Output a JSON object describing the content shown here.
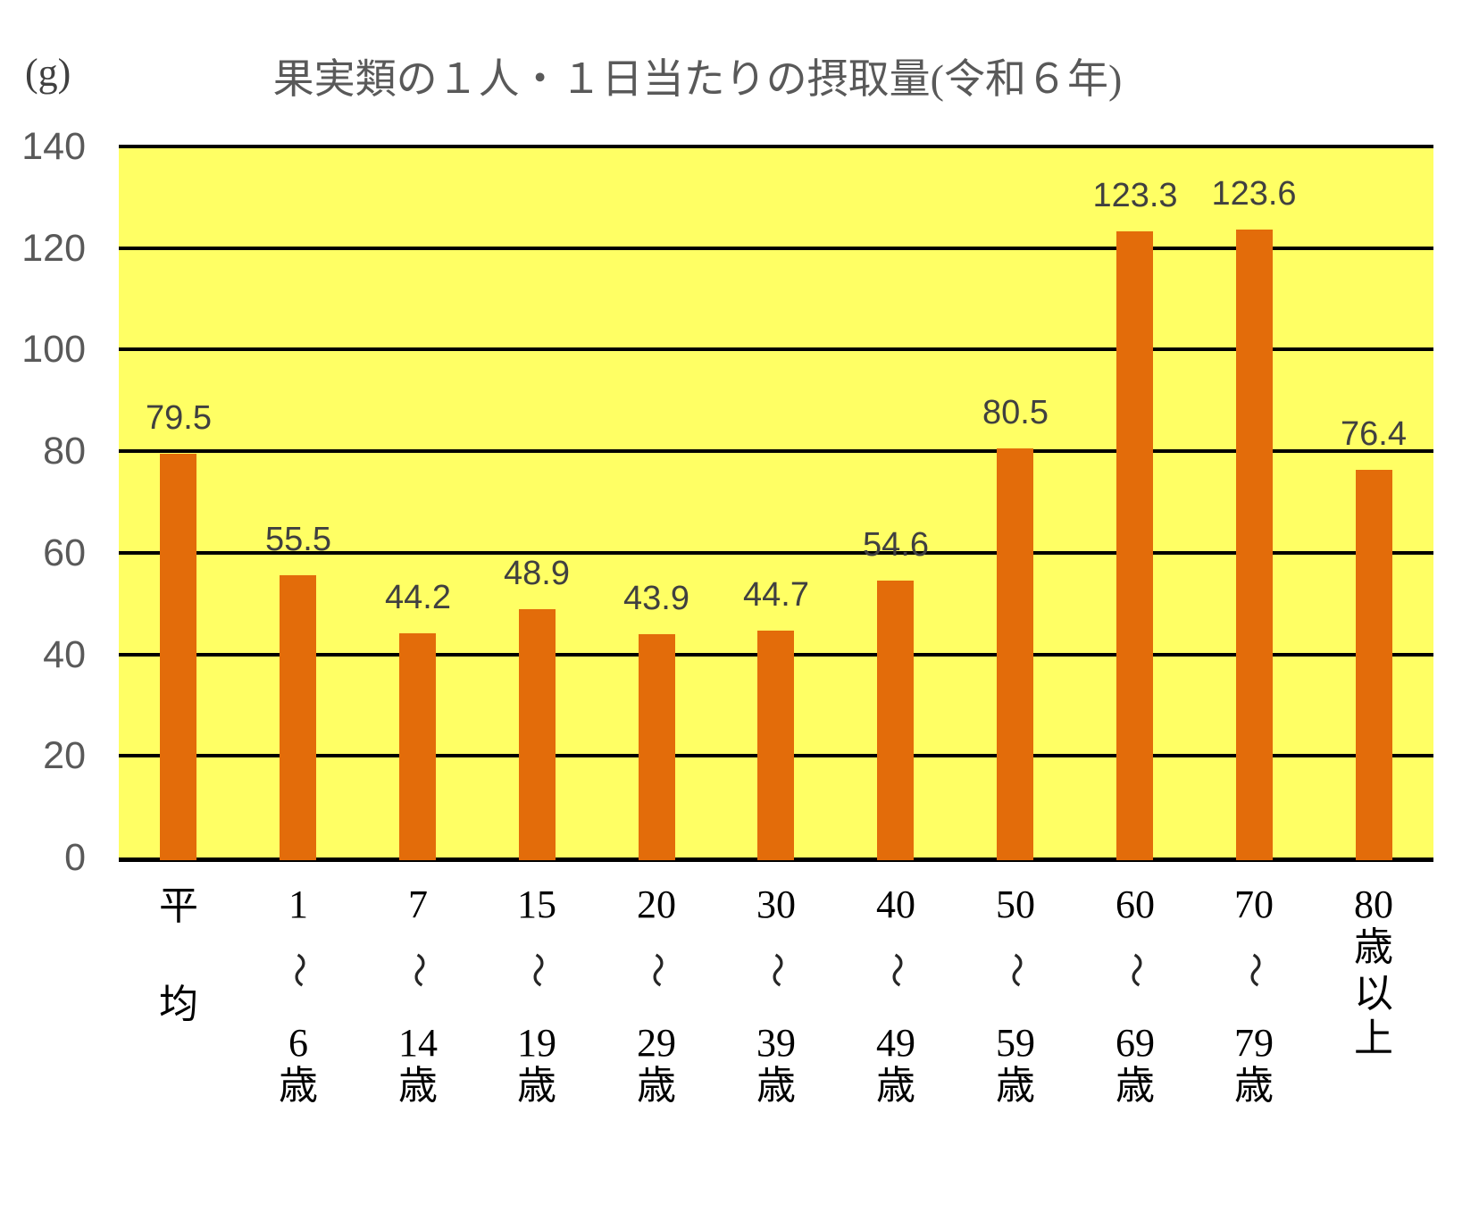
{
  "page": {
    "unit_label": "(g)",
    "title": "果実類の１人・１日当たりの摂取量(令和６年)"
  },
  "chart_data": {
    "type": "bar",
    "title": "果実類の１人・１日当たりの摂取量(令和６年)",
    "ylabel": "(g)",
    "xlabel": "",
    "categories": [
      "平均",
      "1〜6歳",
      "7〜14歳",
      "15〜19歳",
      "20〜29歳",
      "30〜39歳",
      "40〜49歳",
      "50〜59歳",
      "60〜69歳",
      "70〜79歳",
      "80歳以上"
    ],
    "category_lines": [
      [
        "平",
        "均"
      ],
      [
        "1",
        "〜",
        "6",
        "歳"
      ],
      [
        "7",
        "〜",
        "14",
        "歳"
      ],
      [
        "15",
        "〜",
        "19",
        "歳"
      ],
      [
        "20",
        "〜",
        "29",
        "歳"
      ],
      [
        "30",
        "〜",
        "39",
        "歳"
      ],
      [
        "40",
        "〜",
        "49",
        "歳"
      ],
      [
        "50",
        "〜",
        "59",
        "歳"
      ],
      [
        "60",
        "〜",
        "69",
        "歳"
      ],
      [
        "70",
        "〜",
        "79",
        "歳"
      ],
      [
        "80",
        "歳",
        "以",
        "上"
      ]
    ],
    "values": [
      79.5,
      55.5,
      44.2,
      48.9,
      43.9,
      44.7,
      54.6,
      80.5,
      123.3,
      123.6,
      76.4
    ],
    "value_labels": [
      "79.5",
      "55.5",
      "44.2",
      "48.9",
      "43.9",
      "44.7",
      "54.6",
      "80.5",
      "123.3",
      "123.6",
      "76.4"
    ],
    "y_ticks": [
      0,
      20,
      40,
      60,
      80,
      100,
      120,
      140
    ],
    "ylim": [
      0,
      140
    ],
    "grid": "horizontal",
    "legend": "none",
    "colors": {
      "bar": "#E36C0A",
      "plot_background": "#FFFF64",
      "gridline": "#000000",
      "title_text": "#595959",
      "y_tick_text": "#595959",
      "value_label_text": "#404040",
      "category_text": "#000000",
      "page_background": "#FFFFFF"
    }
  }
}
